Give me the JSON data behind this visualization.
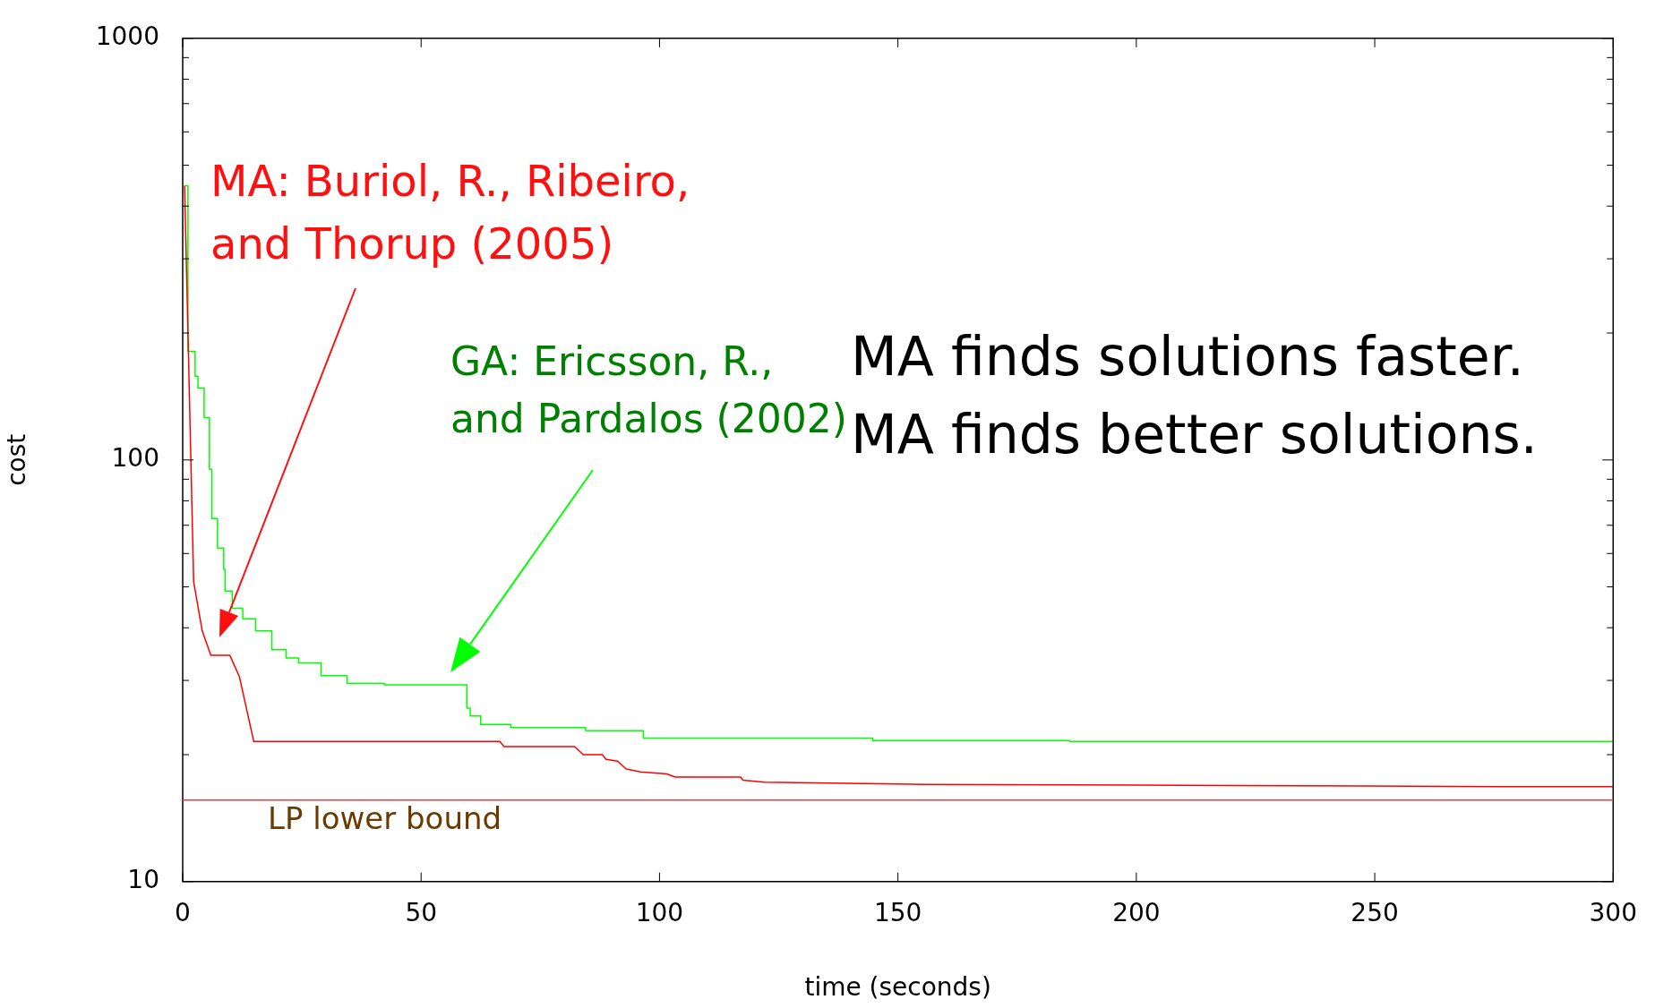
{
  "chart_data": {
    "type": "line",
    "xlabel": "time (seconds)",
    "ylabel": "cost",
    "log": "y",
    "grid": false,
    "legend": false,
    "marker": "none",
    "line_style": "solid",
    "xlim": [
      0,
      300
    ],
    "xticks": [
      0,
      50,
      100,
      150,
      200,
      250,
      300
    ],
    "ylim": [
      10,
      1000
    ],
    "yticks": [
      10,
      {
        "value": 20,
        "label": null
      },
      {
        "value": 30,
        "label": null
      },
      {
        "value": 40,
        "label": null
      },
      {
        "value": 50,
        "label": null
      },
      {
        "value": 60,
        "label": null
      },
      {
        "value": 70,
        "label": null
      },
      {
        "value": 80,
        "label": null
      },
      {
        "value": 90,
        "label": null
      },
      100,
      {
        "value": 200,
        "label": null
      },
      {
        "value": 300,
        "label": null
      },
      {
        "value": 400,
        "label": null
      },
      {
        "value": 500,
        "label": null
      },
      {
        "value": 600,
        "label": null
      },
      {
        "value": 700,
        "label": null
      },
      {
        "value": 800,
        "label": null
      },
      {
        "value": 900,
        "label": null
      },
      1000
    ],
    "series": [
      {
        "type": "line",
        "color": "#ff0000",
        "x": [
          0.4,
          2.3,
          4.1,
          5.9,
          9.9,
          11.9,
          14.9,
          66.5,
          67.4,
          82.2,
          84,
          88,
          88.8,
          91.2,
          93,
          96,
          101.5,
          103.3,
          117,
          117.5,
          122,
          155,
          219,
          276,
          300
        ],
        "values": [
          447,
          51.4,
          39.3,
          34.4,
          34.4,
          30.6,
          21.5,
          21.5,
          20.9,
          20.9,
          20,
          20,
          19.5,
          19.3,
          18.5,
          18.2,
          18,
          17.7,
          17.7,
          17.4,
          17.2,
          17,
          16.9,
          16.8,
          16.8
        ]
      },
      {
        "type": "step",
        "color": "#00ff00",
        "x": [
          0.4,
          1.1,
          2.6,
          3.2,
          4.5,
          5.6,
          6.1,
          7.3,
          8.6,
          8.9,
          10.4,
          12.6,
          15.3,
          18.7,
          21.7,
          24.3,
          29,
          34.5,
          42.3,
          59.6,
          60.3,
          62.5,
          68.8,
          84.5,
          96.6,
          144.7,
          186,
          300
        ],
        "values": [
          447,
          181,
          158,
          148,
          126,
          95,
          72.6,
          61.8,
          55,
          48.9,
          44.5,
          42,
          39.3,
          35.5,
          33.9,
          33,
          30.8,
          29.5,
          29.3,
          25.8,
          24.7,
          23.6,
          23.2,
          22.8,
          21.9,
          21.6,
          21.5,
          21.5
        ]
      }
    ],
    "ref_lines": [
      {
        "axis": "y",
        "value": 15.6,
        "label": "LP lower bound",
        "color": "#e04040"
      }
    ],
    "annotations": [
      "MA: Buriol, R., Ribeiro,\nand Thorup (2005)",
      "GA: Ericsson, R.,\nand Pardalos (2002)",
      "MA finds solutions faster.\nMA finds better solutions."
    ]
  }
}
